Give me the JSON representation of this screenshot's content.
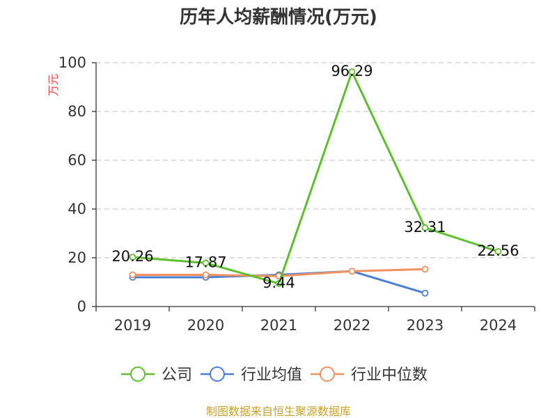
{
  "chart_data": {
    "type": "line",
    "title": "历年人均薪酬情况(万元)",
    "ylabel": "万元",
    "xlabel": "",
    "categories": [
      "2019",
      "2020",
      "2021",
      "2022",
      "2023",
      "2024"
    ],
    "ylim": [
      0,
      100
    ],
    "yticks": [
      0,
      20,
      40,
      60,
      80,
      100
    ],
    "grid": true,
    "legend_position": "bottom",
    "series": [
      {
        "name": "公司",
        "color": "#5cc02b",
        "values": [
          20.26,
          17.87,
          9.44,
          96.29,
          32.31,
          22.56
        ],
        "labels": [
          "20.26",
          "17.87",
          "9.44",
          "96.29",
          "32.31",
          "22.56"
        ]
      },
      {
        "name": "行业均值",
        "color": "#4a7fd8",
        "values": [
          12.0,
          12.0,
          13.0,
          14.5,
          5.5,
          null
        ]
      },
      {
        "name": "行业中位数",
        "color": "#f2905e",
        "values": [
          13.0,
          13.0,
          12.5,
          14.5,
          15.3,
          null
        ]
      }
    ]
  },
  "source": "制图数据来自恒生聚源数据库",
  "colors": {
    "ylabel": "#e8453c",
    "source": "#c9a227",
    "grid": "#cccccc",
    "axis": "#333333"
  }
}
